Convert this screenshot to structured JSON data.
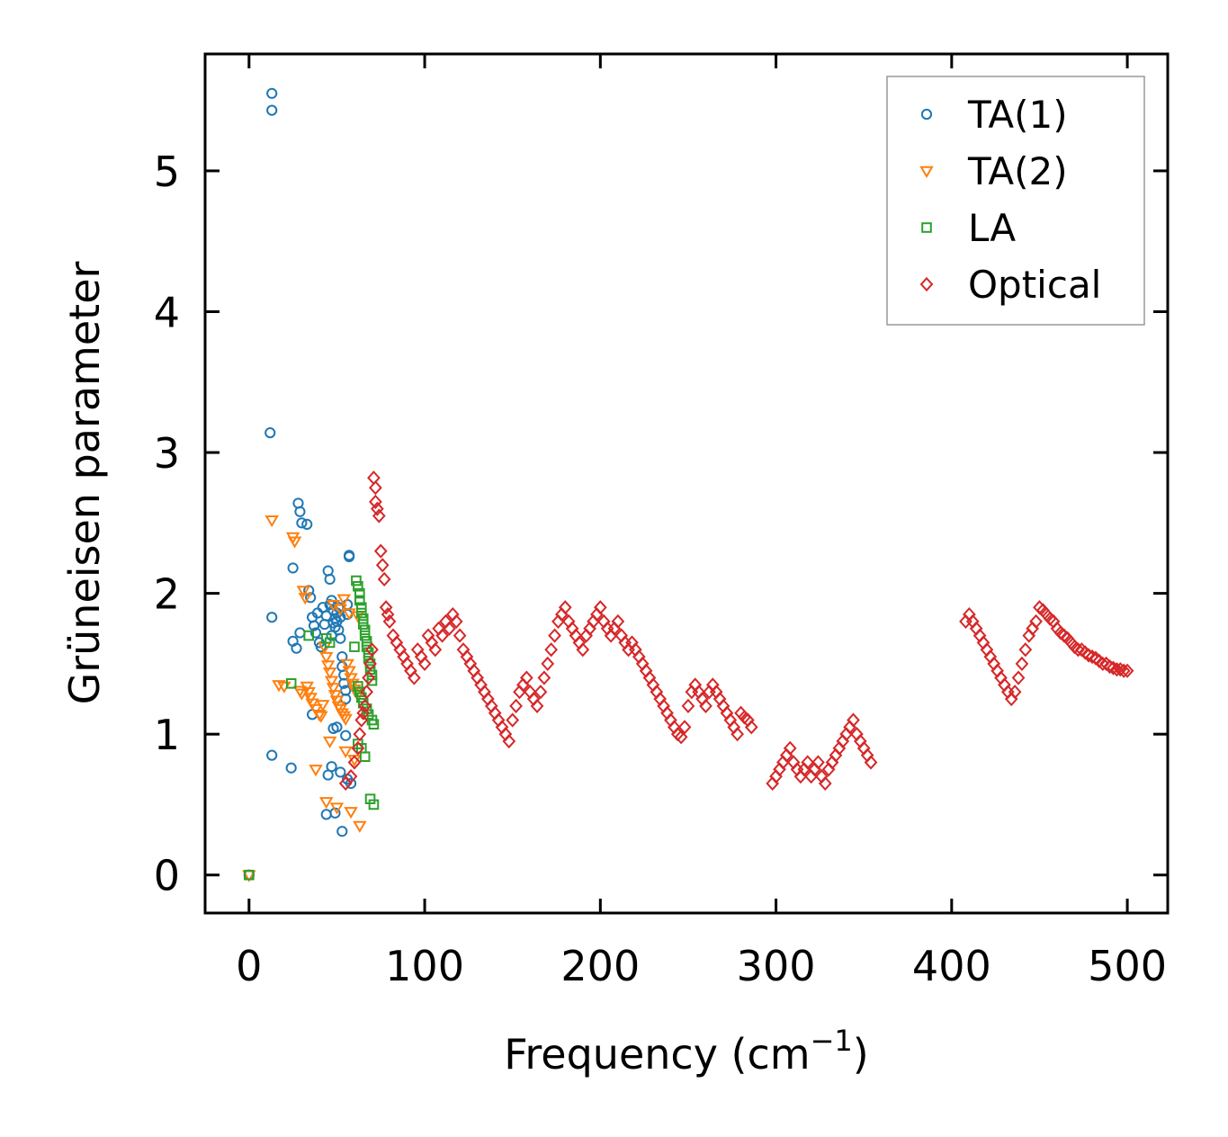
{
  "chart_data": {
    "type": "scatter",
    "title": "",
    "xlabel": "Frequency (cm",
    "xlabel_sup": "−1",
    "xlabel_close": ")",
    "ylabel": "Grüneisen parameter",
    "xlim": [
      -25,
      523
    ],
    "ylim": [
      -0.27,
      5.83
    ],
    "xticks": [
      0,
      100,
      200,
      300,
      400,
      500
    ],
    "yticks": [
      0,
      1,
      2,
      3,
      4,
      5
    ],
    "xtick_labels": [
      "0",
      "100",
      "200",
      "300",
      "400",
      "500"
    ],
    "ytick_labels": [
      "0",
      "1",
      "2",
      "3",
      "4",
      "5"
    ],
    "legend_position": "top-right",
    "series": [
      {
        "name": "TA(1)",
        "marker": "circle",
        "color": "#1f77b4",
        "x": [
          0,
          13,
          13,
          12,
          13,
          13,
          24,
          25,
          25,
          27,
          28,
          29,
          29,
          30,
          33,
          34,
          35,
          36,
          37,
          38,
          39,
          40,
          41,
          42,
          43,
          44,
          45,
          46,
          46,
          47,
          47,
          48,
          48,
          49,
          49,
          50,
          50,
          51,
          51,
          52,
          52,
          53,
          53,
          54,
          54,
          55,
          55,
          56,
          56,
          57,
          57,
          36,
          48,
          50,
          55,
          47,
          52,
          45,
          56,
          58,
          44,
          49,
          53
        ],
        "y": [
          0,
          5.55,
          5.43,
          3.14,
          1.83,
          0.85,
          0.76,
          2.18,
          1.66,
          1.61,
          2.64,
          2.58,
          1.72,
          2.5,
          2.49,
          2.02,
          1.97,
          1.83,
          1.77,
          1.72,
          1.86,
          1.65,
          1.62,
          1.9,
          1.78,
          1.84,
          2.16,
          2.1,
          1.92,
          1.95,
          1.7,
          1.79,
          1.88,
          1.82,
          1.76,
          1.86,
          1.8,
          1.74,
          1.9,
          1.83,
          1.68,
          1.55,
          1.48,
          1.42,
          1.36,
          1.31,
          1.25,
          1.92,
          1.85,
          2.27,
          2.26,
          1.14,
          1.04,
          1.05,
          0.99,
          0.77,
          0.73,
          0.71,
          0.68,
          0.65,
          0.43,
          0.44,
          0.31
        ]
      },
      {
        "name": "TA(2)",
        "marker": "triangle",
        "color": "#ff7f0e",
        "x": [
          0,
          13,
          17,
          20,
          25,
          26,
          29,
          30,
          31,
          32,
          33,
          34,
          35,
          36,
          38,
          40,
          41,
          42,
          43,
          44,
          45,
          46,
          47,
          48,
          49,
          50,
          51,
          52,
          53,
          54,
          55,
          56,
          57,
          58,
          59,
          60,
          61,
          62,
          54,
          48,
          52,
          57,
          62,
          46,
          55,
          60,
          38,
          44,
          50,
          58,
          63
        ],
        "y": [
          0,
          2.52,
          1.35,
          1.34,
          2.4,
          2.37,
          1.31,
          1.29,
          2.02,
          1.97,
          1.34,
          1.3,
          1.26,
          1.22,
          1.18,
          1.14,
          1.13,
          1.21,
          1.62,
          1.55,
          1.49,
          1.44,
          1.38,
          1.33,
          1.28,
          1.24,
          1.2,
          1.18,
          1.15,
          1.13,
          1.11,
          1.5,
          1.45,
          1.4,
          1.36,
          1.32,
          1.3,
          1.28,
          1.96,
          1.92,
          1.89,
          1.86,
          1.84,
          0.95,
          0.88,
          0.82,
          0.75,
          0.52,
          0.48,
          0.45,
          0.35
        ]
      },
      {
        "name": "LA",
        "marker": "square",
        "color": "#2ca02c",
        "x": [
          0,
          24,
          34,
          44,
          46,
          60,
          61,
          62,
          63,
          63,
          64,
          64,
          65,
          65,
          66,
          66,
          67,
          67,
          68,
          68,
          69,
          69,
          70,
          70,
          62,
          63,
          64,
          65,
          67,
          68,
          70,
          71,
          62,
          64,
          66,
          69,
          71
        ],
        "y": [
          0,
          1.36,
          1.7,
          1.68,
          1.65,
          1.62,
          2.09,
          2.05,
          2.0,
          1.95,
          1.9,
          1.86,
          1.82,
          1.78,
          1.74,
          1.7,
          1.66,
          1.62,
          1.58,
          1.54,
          1.5,
          1.46,
          1.42,
          1.38,
          1.34,
          1.3,
          1.26,
          1.22,
          1.18,
          1.14,
          1.1,
          1.07,
          0.93,
          0.9,
          0.84,
          0.54,
          0.5
        ]
      },
      {
        "name": "Optical",
        "marker": "diamond",
        "color": "#d62728",
        "x": [
          55,
          58,
          60,
          62,
          63,
          64,
          65,
          66,
          67,
          68,
          69,
          70,
          71,
          72,
          72,
          73,
          74,
          75,
          76,
          77,
          78,
          79,
          80,
          82,
          84,
          86,
          88,
          90,
          92,
          94,
          96,
          98,
          100,
          102,
          104,
          106,
          108,
          110,
          112,
          114,
          116,
          118,
          120,
          122,
          124,
          126,
          128,
          130,
          132,
          134,
          136,
          138,
          140,
          142,
          144,
          146,
          148,
          150,
          152,
          154,
          156,
          158,
          160,
          162,
          164,
          166,
          168,
          170,
          172,
          174,
          176,
          178,
          180,
          182,
          184,
          186,
          188,
          190,
          192,
          194,
          196,
          198,
          200,
          202,
          204,
          206,
          208,
          210,
          212,
          214,
          216,
          218,
          220,
          222,
          224,
          226,
          228,
          230,
          232,
          234,
          236,
          238,
          240,
          242,
          244,
          246,
          248,
          250,
          252,
          254,
          256,
          258,
          260,
          262,
          264,
          266,
          268,
          270,
          272,
          274,
          276,
          278,
          280,
          282,
          284,
          286,
          298,
          300,
          302,
          304,
          306,
          308,
          310,
          312,
          314,
          316,
          318,
          320,
          322,
          324,
          326,
          328,
          330,
          332,
          334,
          336,
          338,
          340,
          342,
          344,
          346,
          348,
          350,
          352,
          354,
          408,
          410,
          412,
          414,
          416,
          418,
          420,
          422,
          424,
          426,
          428,
          430,
          432,
          434,
          436,
          438,
          440,
          442,
          444,
          446,
          448,
          450,
          452,
          454,
          456,
          458,
          460,
          462,
          464,
          466,
          468,
          470,
          472,
          474,
          476,
          478,
          480,
          482,
          484,
          486,
          488,
          490,
          492,
          494,
          496,
          498,
          500
        ],
        "y": [
          0.65,
          0.7,
          0.8,
          0.9,
          1.0,
          1.1,
          1.15,
          1.2,
          1.3,
          1.4,
          1.5,
          1.6,
          2.82,
          2.75,
          2.65,
          2.6,
          2.55,
          2.3,
          2.2,
          2.1,
          1.9,
          1.85,
          1.8,
          1.7,
          1.65,
          1.6,
          1.55,
          1.5,
          1.45,
          1.4,
          1.6,
          1.55,
          1.5,
          1.7,
          1.65,
          1.6,
          1.75,
          1.7,
          1.8,
          1.75,
          1.85,
          1.8,
          1.7,
          1.6,
          1.55,
          1.5,
          1.45,
          1.4,
          1.35,
          1.3,
          1.25,
          1.2,
          1.15,
          1.1,
          1.05,
          1.0,
          0.95,
          1.1,
          1.2,
          1.3,
          1.35,
          1.4,
          1.3,
          1.25,
          1.2,
          1.3,
          1.4,
          1.5,
          1.6,
          1.7,
          1.8,
          1.85,
          1.9,
          1.8,
          1.75,
          1.7,
          1.65,
          1.6,
          1.7,
          1.75,
          1.8,
          1.85,
          1.9,
          1.8,
          1.75,
          1.7,
          1.75,
          1.8,
          1.7,
          1.65,
          1.6,
          1.65,
          1.6,
          1.55,
          1.5,
          1.45,
          1.4,
          1.35,
          1.3,
          1.25,
          1.2,
          1.15,
          1.1,
          1.05,
          1.0,
          0.98,
          1.05,
          1.2,
          1.3,
          1.35,
          1.3,
          1.25,
          1.2,
          1.3,
          1.35,
          1.3,
          1.25,
          1.2,
          1.15,
          1.1,
          1.05,
          1.0,
          1.15,
          1.12,
          1.1,
          1.05,
          0.65,
          0.7,
          0.75,
          0.8,
          0.85,
          0.9,
          0.8,
          0.75,
          0.7,
          0.75,
          0.8,
          0.7,
          0.75,
          0.8,
          0.7,
          0.65,
          0.75,
          0.8,
          0.85,
          0.9,
          0.95,
          1.0,
          1.05,
          1.1,
          1.0,
          0.95,
          0.9,
          0.85,
          0.8,
          1.8,
          1.85,
          1.8,
          1.75,
          1.7,
          1.65,
          1.6,
          1.55,
          1.5,
          1.45,
          1.4,
          1.35,
          1.3,
          1.25,
          1.3,
          1.4,
          1.5,
          1.6,
          1.7,
          1.75,
          1.8,
          1.9,
          1.88,
          1.85,
          1.82,
          1.8,
          1.75,
          1.72,
          1.7,
          1.68,
          1.65,
          1.62,
          1.6,
          1.6,
          1.58,
          1.56,
          1.55,
          1.54,
          1.52,
          1.5,
          1.5,
          1.48,
          1.47,
          1.46,
          1.46,
          1.45,
          1.45
        ]
      }
    ]
  }
}
